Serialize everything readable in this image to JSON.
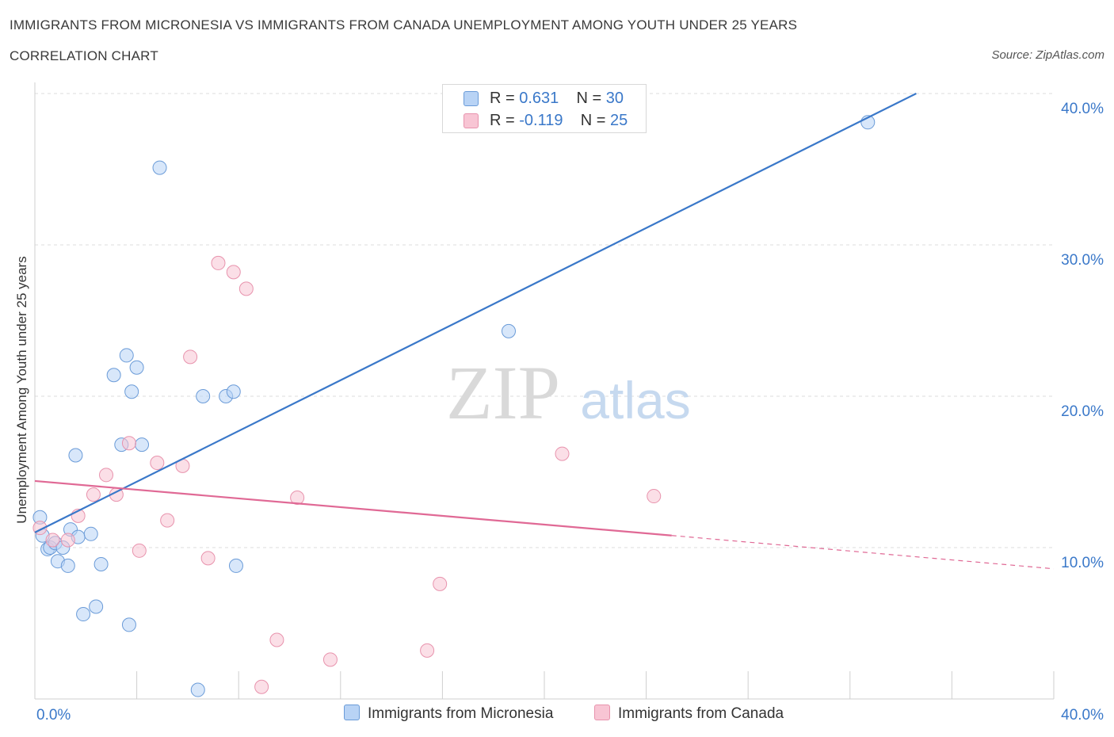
{
  "header": {
    "title": "IMMIGRANTS FROM MICRONESIA VS IMMIGRANTS FROM CANADA UNEMPLOYMENT AMONG YOUTH UNDER 25 YEARS",
    "subtitle": "CORRELATION CHART",
    "source": "Source: ZipAtlas.com"
  },
  "watermark": {
    "zip": "ZIP",
    "atlas": "atlas"
  },
  "legend": {
    "rows": [
      {
        "r_label": "R = ",
        "r_value": "0.631",
        "n_label": "N = ",
        "n_value": "30",
        "color": "#b8d3f5"
      },
      {
        "r_label": "R = ",
        "r_value": "-0.119",
        "n_label": "N = ",
        "n_value": "25",
        "color": "#f8c5d4"
      }
    ]
  },
  "chart_data": {
    "type": "scatter",
    "ylabel": "Unemployment Among Youth under 25 years",
    "xlim": [
      0,
      40
    ],
    "ylim": [
      0,
      40
    ],
    "x_tick_labels": [
      {
        "value": 0,
        "label": "0.0%"
      },
      {
        "value": 40,
        "label": "40.0%"
      }
    ],
    "y_tick_labels": [
      {
        "value": 10,
        "label": "10.0%"
      },
      {
        "value": 20,
        "label": "20.0%"
      },
      {
        "value": 30,
        "label": "30.0%"
      },
      {
        "value": 40,
        "label": "40.0%"
      }
    ],
    "grid": "horizontal-dashed",
    "series": [
      {
        "name": "Immigrants from Micronesia",
        "color": "#b8d3f5",
        "stroke": "#6a9bd8",
        "trend_color": "#3a78c9",
        "trend": {
          "x0": 0,
          "y0": 11.0,
          "x1": 34.6,
          "y1": 40.0
        },
        "points": [
          [
            0.2,
            12.0
          ],
          [
            0.3,
            10.8
          ],
          [
            0.5,
            9.9
          ],
          [
            0.6,
            10.0
          ],
          [
            0.8,
            10.3
          ],
          [
            0.9,
            9.1
          ],
          [
            1.1,
            10.0
          ],
          [
            1.3,
            8.8
          ],
          [
            1.4,
            11.2
          ],
          [
            1.6,
            16.1
          ],
          [
            1.7,
            10.7
          ],
          [
            1.9,
            5.6
          ],
          [
            2.2,
            10.9
          ],
          [
            2.4,
            6.1
          ],
          [
            2.6,
            8.9
          ],
          [
            3.1,
            21.4
          ],
          [
            3.4,
            16.8
          ],
          [
            3.6,
            22.7
          ],
          [
            3.7,
            4.9
          ],
          [
            3.8,
            20.3
          ],
          [
            4.0,
            21.9
          ],
          [
            4.2,
            16.8
          ],
          [
            4.9,
            35.1
          ],
          [
            6.4,
            0.6
          ],
          [
            6.6,
            20.0
          ],
          [
            7.5,
            20.0
          ],
          [
            7.8,
            20.3
          ],
          [
            7.9,
            8.8
          ],
          [
            18.6,
            24.3
          ],
          [
            32.7,
            38.1
          ]
        ]
      },
      {
        "name": "Immigrants from Canada",
        "color": "#f8c5d4",
        "stroke": "#e893ad",
        "trend_color": "#e06995",
        "trend": {
          "x0": 0,
          "y0": 14.4,
          "x1": 25.0,
          "y1": 10.8,
          "dash_to_x": 40,
          "dash_to_y": 8.6
        },
        "points": [
          [
            0.2,
            11.3
          ],
          [
            0.7,
            10.5
          ],
          [
            1.3,
            10.5
          ],
          [
            1.7,
            12.1
          ],
          [
            2.3,
            13.5
          ],
          [
            2.8,
            14.8
          ],
          [
            3.2,
            13.5
          ],
          [
            3.7,
            16.9
          ],
          [
            4.1,
            9.8
          ],
          [
            4.8,
            15.6
          ],
          [
            5.2,
            11.8
          ],
          [
            5.8,
            15.4
          ],
          [
            6.1,
            22.6
          ],
          [
            6.8,
            9.3
          ],
          [
            7.2,
            28.8
          ],
          [
            7.8,
            28.2
          ],
          [
            8.3,
            27.1
          ],
          [
            8.9,
            0.8
          ],
          [
            9.5,
            3.9
          ],
          [
            10.3,
            13.3
          ],
          [
            11.6,
            2.6
          ],
          [
            15.4,
            3.2
          ],
          [
            15.9,
            7.6
          ],
          [
            20.7,
            16.2
          ],
          [
            24.3,
            13.4
          ]
        ]
      }
    ]
  }
}
